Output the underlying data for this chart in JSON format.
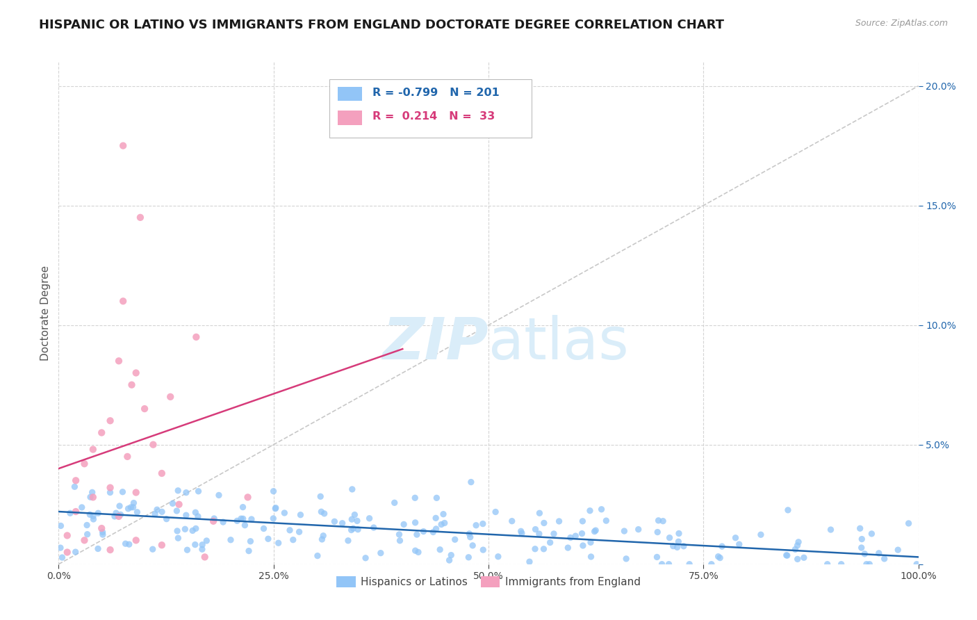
{
  "title": "HISPANIC OR LATINO VS IMMIGRANTS FROM ENGLAND DOCTORATE DEGREE CORRELATION CHART",
  "source": "Source: ZipAtlas.com",
  "ylabel": "Doctorate Degree",
  "legend_blue_r": "-0.799",
  "legend_blue_n": "201",
  "legend_pink_r": "0.214",
  "legend_pink_n": "33",
  "legend_label_blue": "Hispanics or Latinos",
  "legend_label_pink": "Immigrants from England",
  "xlim": [
    0,
    1.0
  ],
  "ylim": [
    0,
    0.21
  ],
  "blue_color": "#92c5f7",
  "pink_color": "#f4a0be",
  "trend_blue_color": "#2166ac",
  "trend_pink_color": "#d63b7a",
  "background_color": "#ffffff",
  "grid_color": "#d0d0d0",
  "watermark_color": "#daedf9",
  "title_fontsize": 13,
  "axis_label_fontsize": 11,
  "tick_fontsize": 10,
  "ytick_labels": [
    "",
    "5.0%",
    "10.0%",
    "15.0%",
    "20.0%"
  ],
  "xtick_labels": [
    "0.0%",
    "25.0%",
    "50.0%",
    "75.0%",
    "100.0%"
  ]
}
